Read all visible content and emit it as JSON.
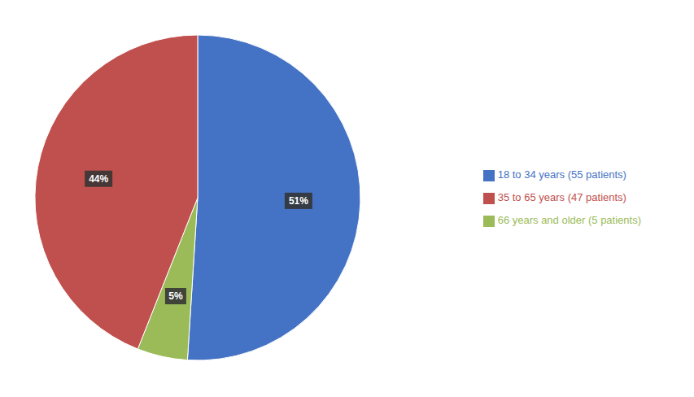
{
  "chart_data": {
    "type": "pie",
    "categories": [
      "18 to 34 years (55 patients)",
      "66 years and older (5 patients)",
      "35 to 65 years (47 patients)"
    ],
    "values": [
      51,
      5,
      44
    ],
    "value_labels": [
      "51%",
      "5%",
      "44%"
    ],
    "colors": [
      "#4472C4",
      "#9BBB59",
      "#C0504D"
    ],
    "data_labels": true,
    "legend": "right"
  }
}
